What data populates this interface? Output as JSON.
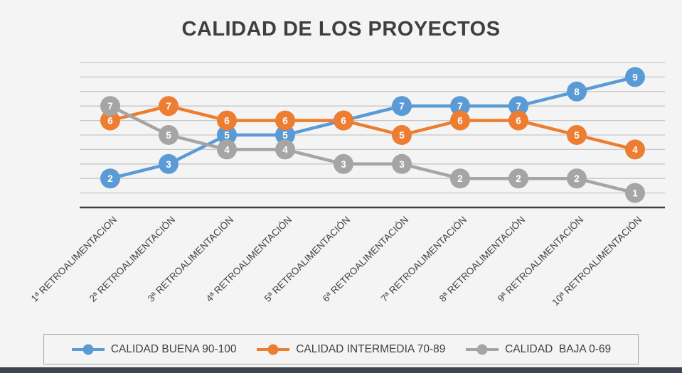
{
  "title": "CALIDAD DE LOS PROYECTOS",
  "chart_data": {
    "type": "line",
    "categories": [
      "1ª RETROALIMENTACION",
      "2ª RETROALIMENTACIÓN",
      "3ª RETROALIMENTACIÓN",
      "4ª RETROALIMENTACIÓN",
      "5ª RETROALIMENTACIÓN",
      "6ª RETROALIMENTACIÓN",
      "7ª RETROALIMENTACIÓN",
      "8ª RETROALIMENTACIÓN",
      "9ª RETROALIMENTACIÓN",
      "10ª RETROALIMENTACIÓN"
    ],
    "series": [
      {
        "name": "CALIDAD BUENA 90-100",
        "color": "#5B9BD5",
        "values": [
          2,
          3,
          5,
          5,
          6,
          7,
          7,
          7,
          8,
          9
        ]
      },
      {
        "name": "CALIDAD INTERMEDIA 70-89",
        "color": "#ED7D31",
        "values": [
          6,
          7,
          6,
          6,
          6,
          5,
          6,
          6,
          5,
          4
        ]
      },
      {
        "name": "CALIDAD  BAJA 0-69",
        "color": "#A5A5A5",
        "values": [
          7,
          5,
          4,
          4,
          3,
          3,
          2,
          2,
          2,
          1
        ]
      }
    ],
    "ylim": [
      0,
      10
    ],
    "grid": true,
    "legend_position": "bottom",
    "data_labels": true
  },
  "colors": {
    "background": "#f4f4f4",
    "gridline": "#c6c6c6",
    "axis": "#404040",
    "title": "#3f3f3f",
    "label": "#404040",
    "data_label": "#ffffff",
    "legend_border": "#a6a6a6",
    "bottom_bar": "#3e4450"
  }
}
